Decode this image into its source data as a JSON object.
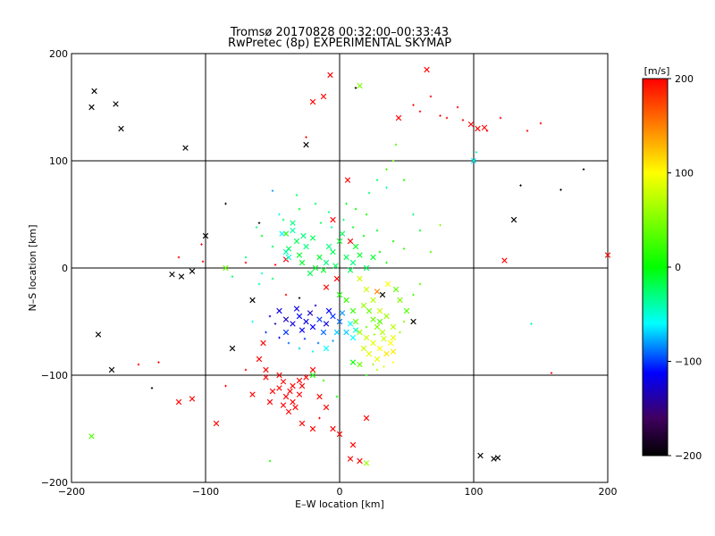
{
  "title": "Tromsø 20170828 00:32:00–00:33:43",
  "subtitle": "RwPretec (8p) EXPERIMENTAL SKYMAP",
  "chart_data": {
    "type": "scatter",
    "title": "Tromsø 20170828 00:32:00–00:33:43",
    "subtitle": "RwPretec (8p) EXPERIMENTAL SKYMAP",
    "xlabel": "E–W location [km]",
    "ylabel": "N–S location [km]",
    "xlim": [
      -200,
      200
    ],
    "ylim": [
      -200,
      200
    ],
    "xticks": [
      -200,
      -100,
      0,
      100,
      200
    ],
    "yticks": [
      -200,
      -100,
      0,
      100,
      200
    ],
    "xtick_labels": [
      "−200",
      "−100",
      "0",
      "100",
      "200"
    ],
    "ytick_labels": [
      "−200",
      "−100",
      "0",
      "100",
      "200"
    ],
    "grid": true,
    "colorbar": {
      "label": "[m/s]",
      "range": [
        -200,
        200
      ],
      "ticks": [
        200,
        100,
        0,
        -100,
        -200
      ],
      "tick_labels": [
        "200",
        "100",
        "0",
        "−100",
        "−200"
      ]
    },
    "marker_legend": "x = large marker, + = small marker",
    "points": [
      [
        -183,
        165,
        -200,
        "x"
      ],
      [
        -185,
        150,
        -200,
        "x"
      ],
      [
        -167,
        153,
        -200,
        "x"
      ],
      [
        -163,
        130,
        -200,
        "x"
      ],
      [
        -115,
        112,
        -200,
        "x"
      ],
      [
        -25,
        115,
        -200,
        "x"
      ],
      [
        12,
        168,
        -200,
        "+"
      ],
      [
        -100,
        30,
        -200,
        "x"
      ],
      [
        -125,
        -6,
        -200,
        "x"
      ],
      [
        -118,
        -8,
        -200,
        "x"
      ],
      [
        -110,
        -3,
        -200,
        "x"
      ],
      [
        -65,
        -30,
        -200,
        "x"
      ],
      [
        -180,
        -62,
        -200,
        "x"
      ],
      [
        -170,
        -95,
        -200,
        "x"
      ],
      [
        -80,
        -75,
        -200,
        "x"
      ],
      [
        -140,
        -112,
        -200,
        "+"
      ],
      [
        130,
        45,
        -200,
        "x"
      ],
      [
        105,
        -175,
        -200,
        "x"
      ],
      [
        115,
        -178,
        -200,
        "x"
      ],
      [
        118,
        -177,
        -200,
        "x"
      ],
      [
        165,
        73,
        -200,
        "+"
      ],
      [
        182,
        92,
        -200,
        "+"
      ],
      [
        135,
        77,
        -200,
        "+"
      ],
      [
        -60,
        42,
        -200,
        "+"
      ],
      [
        -85,
        60,
        -200,
        "+"
      ],
      [
        55,
        -50,
        -200,
        "x"
      ],
      [
        32,
        -25,
        -200,
        "x"
      ],
      [
        -30,
        -28,
        -200,
        "+"
      ],
      [
        -7,
        180,
        200,
        "x"
      ],
      [
        -20,
        155,
        200,
        "x"
      ],
      [
        -12,
        160,
        200,
        "x"
      ],
      [
        -25,
        122,
        200,
        "+"
      ],
      [
        44,
        140,
        200,
        "x"
      ],
      [
        65,
        185,
        200,
        "x"
      ],
      [
        75,
        142,
        200,
        "+"
      ],
      [
        80,
        140,
        200,
        "+"
      ],
      [
        88,
        150,
        200,
        "+"
      ],
      [
        92,
        138,
        200,
        "+"
      ],
      [
        98,
        134,
        200,
        "x"
      ],
      [
        103,
        130,
        200,
        "x"
      ],
      [
        108,
        131,
        200,
        "x"
      ],
      [
        110,
        128,
        200,
        "+"
      ],
      [
        55,
        152,
        200,
        "+"
      ],
      [
        60,
        146,
        200,
        "+"
      ],
      [
        68,
        160,
        200,
        "+"
      ],
      [
        120,
        140,
        200,
        "+"
      ],
      [
        140,
        128,
        200,
        "+"
      ],
      [
        150,
        135,
        200,
        "+"
      ],
      [
        6,
        82,
        200,
        "x"
      ],
      [
        -5,
        45,
        200,
        "x"
      ],
      [
        -40,
        8,
        200,
        "x"
      ],
      [
        -48,
        3,
        200,
        "+"
      ],
      [
        -70,
        5,
        200,
        "+"
      ],
      [
        -102,
        6,
        200,
        "+"
      ],
      [
        -103,
        22,
        200,
        "+"
      ],
      [
        -120,
        10,
        200,
        "+"
      ],
      [
        -57,
        -70,
        200,
        "x"
      ],
      [
        -60,
        -85,
        200,
        "x"
      ],
      [
        -55,
        -95,
        200,
        "x"
      ],
      [
        -45,
        -112,
        200,
        "x"
      ],
      [
        -40,
        -120,
        200,
        "x"
      ],
      [
        -35,
        -125,
        200,
        "x"
      ],
      [
        -30,
        -118,
        200,
        "x"
      ],
      [
        -28,
        -110,
        200,
        "x"
      ],
      [
        -25,
        -102,
        200,
        "x"
      ],
      [
        -20,
        -95,
        200,
        "x"
      ],
      [
        -15,
        -120,
        200,
        "x"
      ],
      [
        -10,
        -130,
        200,
        "x"
      ],
      [
        -5,
        -150,
        200,
        "x"
      ],
      [
        -38,
        -134,
        200,
        "x"
      ],
      [
        -42,
        -128,
        200,
        "x"
      ],
      [
        -52,
        -125,
        200,
        "x"
      ],
      [
        -65,
        -118,
        200,
        "x"
      ],
      [
        -120,
        -125,
        200,
        "x"
      ],
      [
        -110,
        -122,
        200,
        "x"
      ],
      [
        -92,
        -145,
        200,
        "x"
      ],
      [
        0,
        -155,
        200,
        "x"
      ],
      [
        10,
        -165,
        200,
        "x"
      ],
      [
        15,
        -180,
        200,
        "x"
      ],
      [
        8,
        -178,
        200,
        "x"
      ],
      [
        20,
        -140,
        200,
        "x"
      ],
      [
        -15,
        -140,
        200,
        "+"
      ],
      [
        -150,
        -90,
        200,
        "+"
      ],
      [
        -135,
        -88,
        200,
        "+"
      ],
      [
        -85,
        -110,
        200,
        "+"
      ],
      [
        -55,
        -102,
        200,
        "x"
      ],
      [
        -70,
        -95,
        200,
        "+"
      ],
      [
        -45,
        -100,
        200,
        "x"
      ],
      [
        -30,
        -105,
        200,
        "x"
      ],
      [
        -20,
        -150,
        200,
        "x"
      ],
      [
        -28,
        -145,
        200,
        "x"
      ],
      [
        -35,
        -110,
        200,
        "x"
      ],
      [
        -42,
        -106,
        200,
        "x"
      ],
      [
        -50,
        -115,
        200,
        "x"
      ],
      [
        -33,
        -130,
        200,
        "x"
      ],
      [
        -37,
        -115,
        200,
        "x"
      ],
      [
        123,
        7,
        200,
        "x"
      ],
      [
        200,
        12,
        200,
        "x"
      ],
      [
        158,
        -98,
        200,
        "+"
      ],
      [
        28,
        -22,
        150,
        "x"
      ],
      [
        -40,
        -25,
        200,
        "+"
      ],
      [
        -10,
        -18,
        200,
        "x"
      ],
      [
        -2,
        -10,
        200,
        "x"
      ],
      [
        8,
        25,
        200,
        "x"
      ],
      [
        15,
        -10,
        80,
        "x"
      ],
      [
        20,
        -20,
        80,
        "x"
      ],
      [
        25,
        -30,
        70,
        "x"
      ],
      [
        30,
        -40,
        80,
        "x"
      ],
      [
        35,
        -45,
        60,
        "x"
      ],
      [
        40,
        -55,
        70,
        "x"
      ],
      [
        18,
        -35,
        60,
        "x"
      ],
      [
        22,
        -40,
        40,
        "x"
      ],
      [
        28,
        -55,
        50,
        "x"
      ],
      [
        32,
        -60,
        70,
        "x"
      ],
      [
        20,
        -65,
        80,
        "x"
      ],
      [
        25,
        -70,
        90,
        "x"
      ],
      [
        30,
        -75,
        100,
        "x"
      ],
      [
        35,
        -80,
        110,
        "x"
      ],
      [
        22,
        -80,
        90,
        "x"
      ],
      [
        18,
        -75,
        80,
        "x"
      ],
      [
        38,
        -70,
        100,
        "x"
      ],
      [
        40,
        -78,
        110,
        "x"
      ],
      [
        28,
        -85,
        90,
        "x"
      ],
      [
        15,
        -60,
        60,
        "x"
      ],
      [
        12,
        -50,
        40,
        "x"
      ],
      [
        45,
        -30,
        50,
        "x"
      ],
      [
        50,
        -40,
        30,
        "x"
      ],
      [
        42,
        -20,
        40,
        "x"
      ],
      [
        36,
        -15,
        100,
        "x"
      ],
      [
        30,
        -50,
        30,
        "x"
      ],
      [
        25,
        -48,
        40,
        "x"
      ],
      [
        40,
        -65,
        90,
        "x"
      ],
      [
        33,
        -66,
        80,
        "x"
      ],
      [
        26,
        -62,
        60,
        "+"
      ],
      [
        20,
        -55,
        40,
        "+"
      ],
      [
        45,
        -60,
        60,
        "+"
      ],
      [
        48,
        -50,
        50,
        "+"
      ],
      [
        10,
        -40,
        20,
        "x"
      ],
      [
        5,
        -30,
        20,
        "x"
      ],
      [
        0,
        -25,
        10,
        "x"
      ],
      [
        20,
        -100,
        10,
        "+"
      ],
      [
        28,
        -95,
        70,
        "+"
      ],
      [
        33,
        -92,
        90,
        "+"
      ],
      [
        40,
        -88,
        100,
        "+"
      ],
      [
        15,
        -90,
        40,
        "x"
      ],
      [
        25,
        -90,
        60,
        "+"
      ],
      [
        60,
        -15,
        30,
        "+"
      ],
      [
        55,
        -25,
        20,
        "+"
      ],
      [
        -40,
        32,
        10,
        "x"
      ],
      [
        -38,
        18,
        -20,
        "x"
      ],
      [
        -35,
        35,
        -40,
        "x"
      ],
      [
        -30,
        12,
        -10,
        "x"
      ],
      [
        -25,
        20,
        -30,
        "x"
      ],
      [
        -20,
        28,
        -20,
        "x"
      ],
      [
        -15,
        10,
        -10,
        "x"
      ],
      [
        -10,
        5,
        -30,
        "x"
      ],
      [
        -5,
        15,
        -20,
        "x"
      ],
      [
        0,
        25,
        -10,
        "x"
      ],
      [
        5,
        10,
        -20,
        "x"
      ],
      [
        10,
        5,
        -30,
        "x"
      ],
      [
        -28,
        5,
        -10,
        "x"
      ],
      [
        -22,
        -5,
        -20,
        "x"
      ],
      [
        -12,
        -2,
        -10,
        "x"
      ],
      [
        -8,
        20,
        -30,
        "x"
      ],
      [
        2,
        32,
        -20,
        "x"
      ],
      [
        12,
        20,
        -10,
        "x"
      ],
      [
        -18,
        0,
        -10,
        "x"
      ],
      [
        -3,
        2,
        -20,
        "x"
      ],
      [
        8,
        -2,
        -20,
        "x"
      ],
      [
        15,
        12,
        -10,
        "x"
      ],
      [
        -32,
        25,
        -20,
        "x"
      ],
      [
        -27,
        30,
        -30,
        "x"
      ],
      [
        -40,
        15,
        -40,
        "x"
      ],
      [
        20,
        0,
        -20,
        "x"
      ],
      [
        25,
        10,
        -10,
        "x"
      ],
      [
        -6,
        38,
        -40,
        "+"
      ],
      [
        3,
        45,
        -30,
        "+"
      ],
      [
        -14,
        42,
        -20,
        "+"
      ],
      [
        10,
        38,
        -10,
        "+"
      ],
      [
        18,
        30,
        0,
        "+"
      ],
      [
        -42,
        45,
        -20,
        "+"
      ],
      [
        -30,
        55,
        -10,
        "+"
      ],
      [
        -50,
        20,
        -20,
        "+"
      ],
      [
        5,
        60,
        -10,
        "+"
      ],
      [
        12,
        55,
        0,
        "+"
      ],
      [
        20,
        50,
        10,
        "+"
      ],
      [
        -18,
        60,
        -20,
        "+"
      ],
      [
        -8,
        52,
        -30,
        "+"
      ],
      [
        30,
        15,
        0,
        "+"
      ],
      [
        35,
        5,
        10,
        "+"
      ],
      [
        28,
        35,
        -10,
        "+"
      ],
      [
        40,
        25,
        0,
        "+"
      ],
      [
        -35,
        42,
        -30,
        "x"
      ],
      [
        -58,
        -5,
        -50,
        "+"
      ],
      [
        -60,
        -15,
        -40,
        "+"
      ],
      [
        -50,
        -10,
        -30,
        "+"
      ],
      [
        -45,
        -40,
        -120,
        "x"
      ],
      [
        -40,
        -48,
        -130,
        "x"
      ],
      [
        -35,
        -52,
        -120,
        "x"
      ],
      [
        -30,
        -45,
        -110,
        "x"
      ],
      [
        -25,
        -50,
        -120,
        "x"
      ],
      [
        -20,
        -55,
        -110,
        "x"
      ],
      [
        -15,
        -48,
        -100,
        "x"
      ],
      [
        -10,
        -52,
        -120,
        "x"
      ],
      [
        -5,
        -45,
        -100,
        "x"
      ],
      [
        0,
        -50,
        -90,
        "x"
      ],
      [
        -22,
        -42,
        -130,
        "x"
      ],
      [
        -28,
        -58,
        -110,
        "x"
      ],
      [
        -12,
        -60,
        -90,
        "x"
      ],
      [
        -8,
        -40,
        -110,
        "x"
      ],
      [
        2,
        -42,
        -80,
        "x"
      ],
      [
        -40,
        -60,
        -100,
        "x"
      ],
      [
        -32,
        -38,
        -120,
        "x"
      ],
      [
        -18,
        -35,
        -130,
        "+"
      ],
      [
        -48,
        -52,
        -140,
        "+"
      ],
      [
        -52,
        -45,
        -120,
        "+"
      ],
      [
        -55,
        -60,
        -100,
        "+"
      ],
      [
        -45,
        -65,
        -110,
        "+"
      ],
      [
        -38,
        -70,
        -90,
        "+"
      ],
      [
        -26,
        -66,
        -100,
        "+"
      ],
      [
        -16,
        -70,
        -90,
        "+"
      ],
      [
        -5,
        -68,
        -80,
        "+"
      ],
      [
        5,
        -60,
        -70,
        "x"
      ],
      [
        8,
        -52,
        -60,
        "x"
      ],
      [
        12,
        -58,
        -50,
        "x"
      ],
      [
        10,
        -65,
        -60,
        "x"
      ],
      [
        -2,
        -60,
        -70,
        "x"
      ],
      [
        -10,
        -75,
        -60,
        "x"
      ],
      [
        -20,
        -78,
        -60,
        "+"
      ],
      [
        -30,
        -75,
        -70,
        "+"
      ],
      [
        -43,
        32,
        -60,
        "x"
      ],
      [
        -38,
        10,
        -50,
        "x"
      ],
      [
        100,
        100,
        -60,
        "x"
      ],
      [
        102,
        108,
        -40,
        "+"
      ],
      [
        -50,
        72,
        -80,
        "+"
      ],
      [
        -45,
        50,
        -60,
        "+"
      ],
      [
        22,
        70,
        -30,
        "+"
      ],
      [
        35,
        75,
        -40,
        "+"
      ],
      [
        28,
        82,
        -20,
        "+"
      ],
      [
        -32,
        68,
        -20,
        "+"
      ],
      [
        -58,
        30,
        -10,
        "+"
      ],
      [
        -62,
        38,
        -30,
        "+"
      ],
      [
        60,
        35,
        -10,
        "+"
      ],
      [
        55,
        50,
        -30,
        "+"
      ],
      [
        -185,
        -157,
        30,
        "x"
      ],
      [
        -85,
        0,
        40,
        "x"
      ],
      [
        -52,
        -180,
        10,
        "+"
      ],
      [
        15,
        170,
        50,
        "x"
      ],
      [
        20,
        -182,
        60,
        "x"
      ],
      [
        -70,
        10,
        -30,
        "+"
      ],
      [
        -80,
        -8,
        -20,
        "+"
      ],
      [
        143,
        -52,
        -40,
        "+"
      ],
      [
        75,
        40,
        50,
        "+"
      ],
      [
        68,
        15,
        30,
        "+"
      ],
      [
        48,
        18,
        20,
        "+"
      ],
      [
        -65,
        -50,
        -60,
        "+"
      ],
      [
        10,
        -88,
        0,
        "x"
      ],
      [
        -20,
        -100,
        10,
        "x"
      ],
      [
        -12,
        -105,
        20,
        "+"
      ],
      [
        -2,
        -120,
        0,
        "+"
      ],
      [
        40,
        100,
        40,
        "+"
      ],
      [
        42,
        115,
        30,
        "+"
      ],
      [
        35,
        92,
        20,
        "+"
      ],
      [
        48,
        82,
        10,
        "+"
      ]
    ]
  }
}
